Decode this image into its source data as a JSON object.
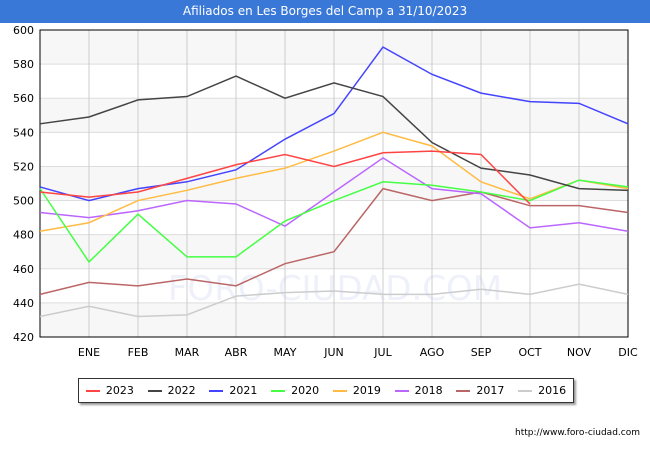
{
  "title": "Afiliados en Les Borges del Camp a 31/10/2023",
  "watermark": "FORO-CIUDAD.COM",
  "footer_url": "http://www.foro-ciudad.com",
  "chart_data": {
    "type": "line",
    "title": "Afiliados en Les Borges del Camp a 31/10/2023",
    "categories": [
      "",
      "ENE",
      "FEB",
      "MAR",
      "ABR",
      "MAY",
      "JUN",
      "JUL",
      "AGO",
      "SEP",
      "OCT",
      "NOV",
      "DIC"
    ],
    "ylim": [
      420,
      600
    ],
    "yticks": [
      420,
      440,
      460,
      480,
      500,
      520,
      540,
      560,
      580,
      600
    ],
    "grid": true,
    "legend_placement": "bottom",
    "series": [
      {
        "name": "2023",
        "color": "#ff4444",
        "values": [
          505,
          502,
          505,
          513,
          521,
          527,
          520,
          528,
          529,
          527,
          498,
          null,
          null
        ]
      },
      {
        "name": "2022",
        "color": "#444444",
        "values": [
          545,
          549,
          559,
          561,
          573,
          560,
          569,
          561,
          534,
          519,
          515,
          507,
          506
        ]
      },
      {
        "name": "2021",
        "color": "#4444ff",
        "values": [
          508,
          500,
          507,
          511,
          518,
          536,
          551,
          590,
          574,
          563,
          558,
          557,
          545
        ]
      },
      {
        "name": "2020",
        "color": "#44ff44",
        "values": [
          507,
          464,
          492,
          467,
          467,
          488,
          500,
          511,
          509,
          505,
          500,
          512,
          508
        ]
      },
      {
        "name": "2019",
        "color": "#ffbb44",
        "values": [
          482,
          487,
          500,
          506,
          513,
          519,
          529,
          540,
          532,
          511,
          501,
          512,
          507
        ]
      },
      {
        "name": "2018",
        "color": "#bb66ff",
        "values": [
          493,
          490,
          494,
          500,
          498,
          485,
          505,
          525,
          507,
          504,
          484,
          487,
          482
        ]
      },
      {
        "name": "2017",
        "color": "#bb6666",
        "values": [
          445,
          452,
          450,
          454,
          450,
          463,
          470,
          507,
          500,
          505,
          497,
          497,
          493
        ]
      },
      {
        "name": "2016",
        "color": "#cccccc",
        "values": [
          432,
          438,
          432,
          433,
          444,
          446,
          447,
          445,
          445,
          448,
          445,
          451,
          445
        ]
      }
    ]
  }
}
